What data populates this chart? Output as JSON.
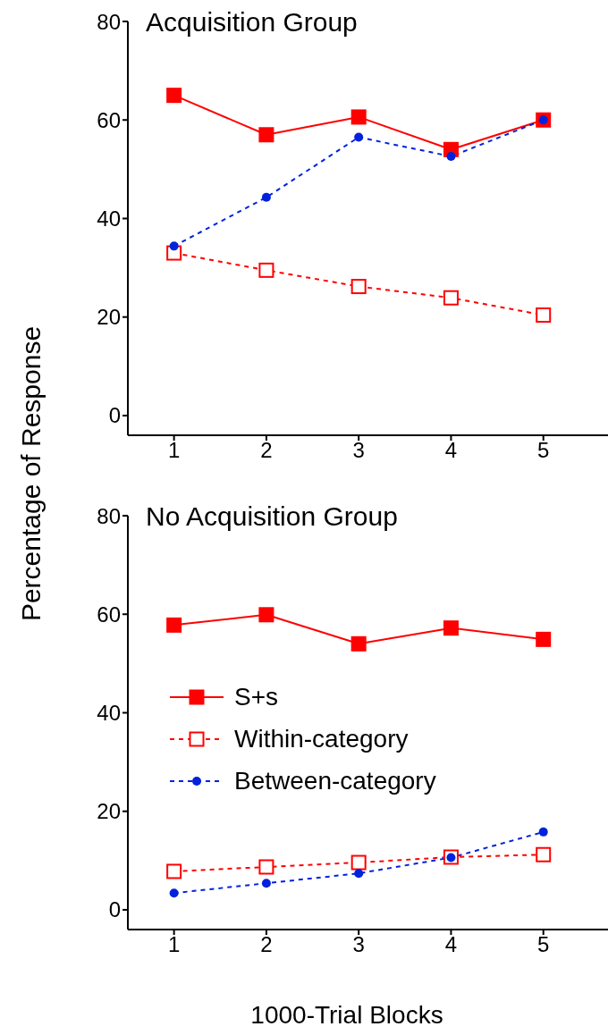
{
  "chart_data": [
    {
      "type": "line",
      "title": "Acquisition Group",
      "ylabel": "Percentage of Response",
      "x": [
        1,
        2,
        3,
        4,
        5
      ],
      "xlim": [
        0.5,
        5.7
      ],
      "xticks": [
        1,
        2,
        3,
        4,
        5
      ],
      "ylim": [
        -4,
        80
      ],
      "yticks": [
        0,
        20,
        40,
        60,
        80
      ],
      "grid": false,
      "legend": false,
      "series": [
        {
          "color": "#ff0000",
          "marker": "square",
          "line_style": "solid",
          "values": [
            65,
            57,
            60.6,
            54,
            60
          ]
        },
        {
          "color": "#ff0000",
          "marker": "square",
          "line_style": "dashed",
          "values": [
            33,
            29.5,
            26.2,
            23.9,
            20.4
          ]
        },
        {
          "color": "#0022dd",
          "marker": "circle",
          "line_style": "dashed",
          "values": [
            34.4,
            44.3,
            56.5,
            52.6,
            60
          ]
        }
      ]
    },
    {
      "type": "line",
      "title": "No Acquisition Group",
      "xlabel": "1000-Trial Blocks",
      "x": [
        1,
        2,
        3,
        4,
        5
      ],
      "xlim": [
        0.5,
        5.7
      ],
      "xticks": [
        1,
        2,
        3,
        4,
        5
      ],
      "ylim": [
        -4,
        80
      ],
      "yticks": [
        0,
        20,
        40,
        60,
        80
      ],
      "grid": false,
      "legend": "left",
      "series": [
        {
          "name": "S+s",
          "color": "#ff0000",
          "marker": "square",
          "line_style": "solid",
          "values": [
            57.8,
            59.9,
            54,
            57.2,
            54.9
          ]
        },
        {
          "name": "Within-category",
          "color": "#ff0000",
          "marker": "square",
          "line_style": "dashed",
          "values": [
            7.8,
            8.7,
            9.6,
            10.7,
            11.2
          ]
        },
        {
          "name": "Between-category",
          "color": "#0022dd",
          "marker": "circle",
          "line_style": "dashed",
          "values": [
            3.4,
            5.4,
            7.4,
            10.6,
            15.8
          ]
        }
      ]
    }
  ]
}
